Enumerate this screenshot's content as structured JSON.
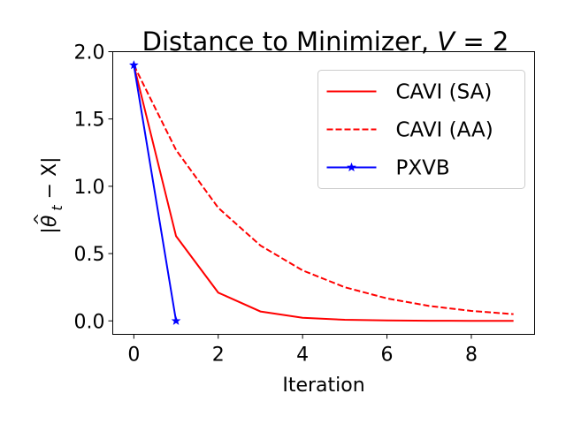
{
  "chart_data": {
    "type": "line",
    "title_prefix": "Distance to Minimizer, ",
    "title_var": "V",
    "title_eq": " = 2",
    "xlabel": "Iteration",
    "ylabel": "|θ̂_t − X|",
    "ylabel_theta": "θ",
    "ylabel_hat": "^",
    "ylabel_sub": "t",
    "ylabel_rest": " − X|",
    "xlim": [
      -0.5,
      9.5
    ],
    "ylim": [
      -0.1,
      2.0
    ],
    "xticks": [
      0,
      2,
      4,
      6,
      8
    ],
    "xtick_labels": [
      "0",
      "2",
      "4",
      "6",
      "8"
    ],
    "yticks": [
      0.0,
      0.5,
      1.0,
      1.5,
      2.0
    ],
    "ytick_labels": [
      "0.0",
      "0.5",
      "1.0",
      "1.5",
      "2.0"
    ],
    "grid": false,
    "legend_position": "top-right",
    "series": [
      {
        "name": "CAVI (SA)",
        "color": "#ff0000",
        "style": "solid",
        "marker": "none",
        "x": [
          0,
          1,
          2,
          3,
          4,
          5,
          6,
          7,
          8,
          9
        ],
        "values": [
          1.9,
          0.63,
          0.21,
          0.07,
          0.023,
          0.008,
          0.003,
          0.001,
          0.0,
          0.0
        ]
      },
      {
        "name": "CAVI (AA)",
        "color": "#ff0000",
        "style": "dashed",
        "marker": "none",
        "x": [
          0,
          1,
          2,
          3,
          4,
          5,
          6,
          7,
          8,
          9
        ],
        "values": [
          1.9,
          1.27,
          0.84,
          0.56,
          0.375,
          0.25,
          0.167,
          0.111,
          0.074,
          0.05
        ]
      },
      {
        "name": "PXVB",
        "color": "#0000ff",
        "style": "solid",
        "marker": "star",
        "x": [
          0,
          1
        ],
        "values": [
          1.9,
          0.0
        ]
      }
    ]
  }
}
